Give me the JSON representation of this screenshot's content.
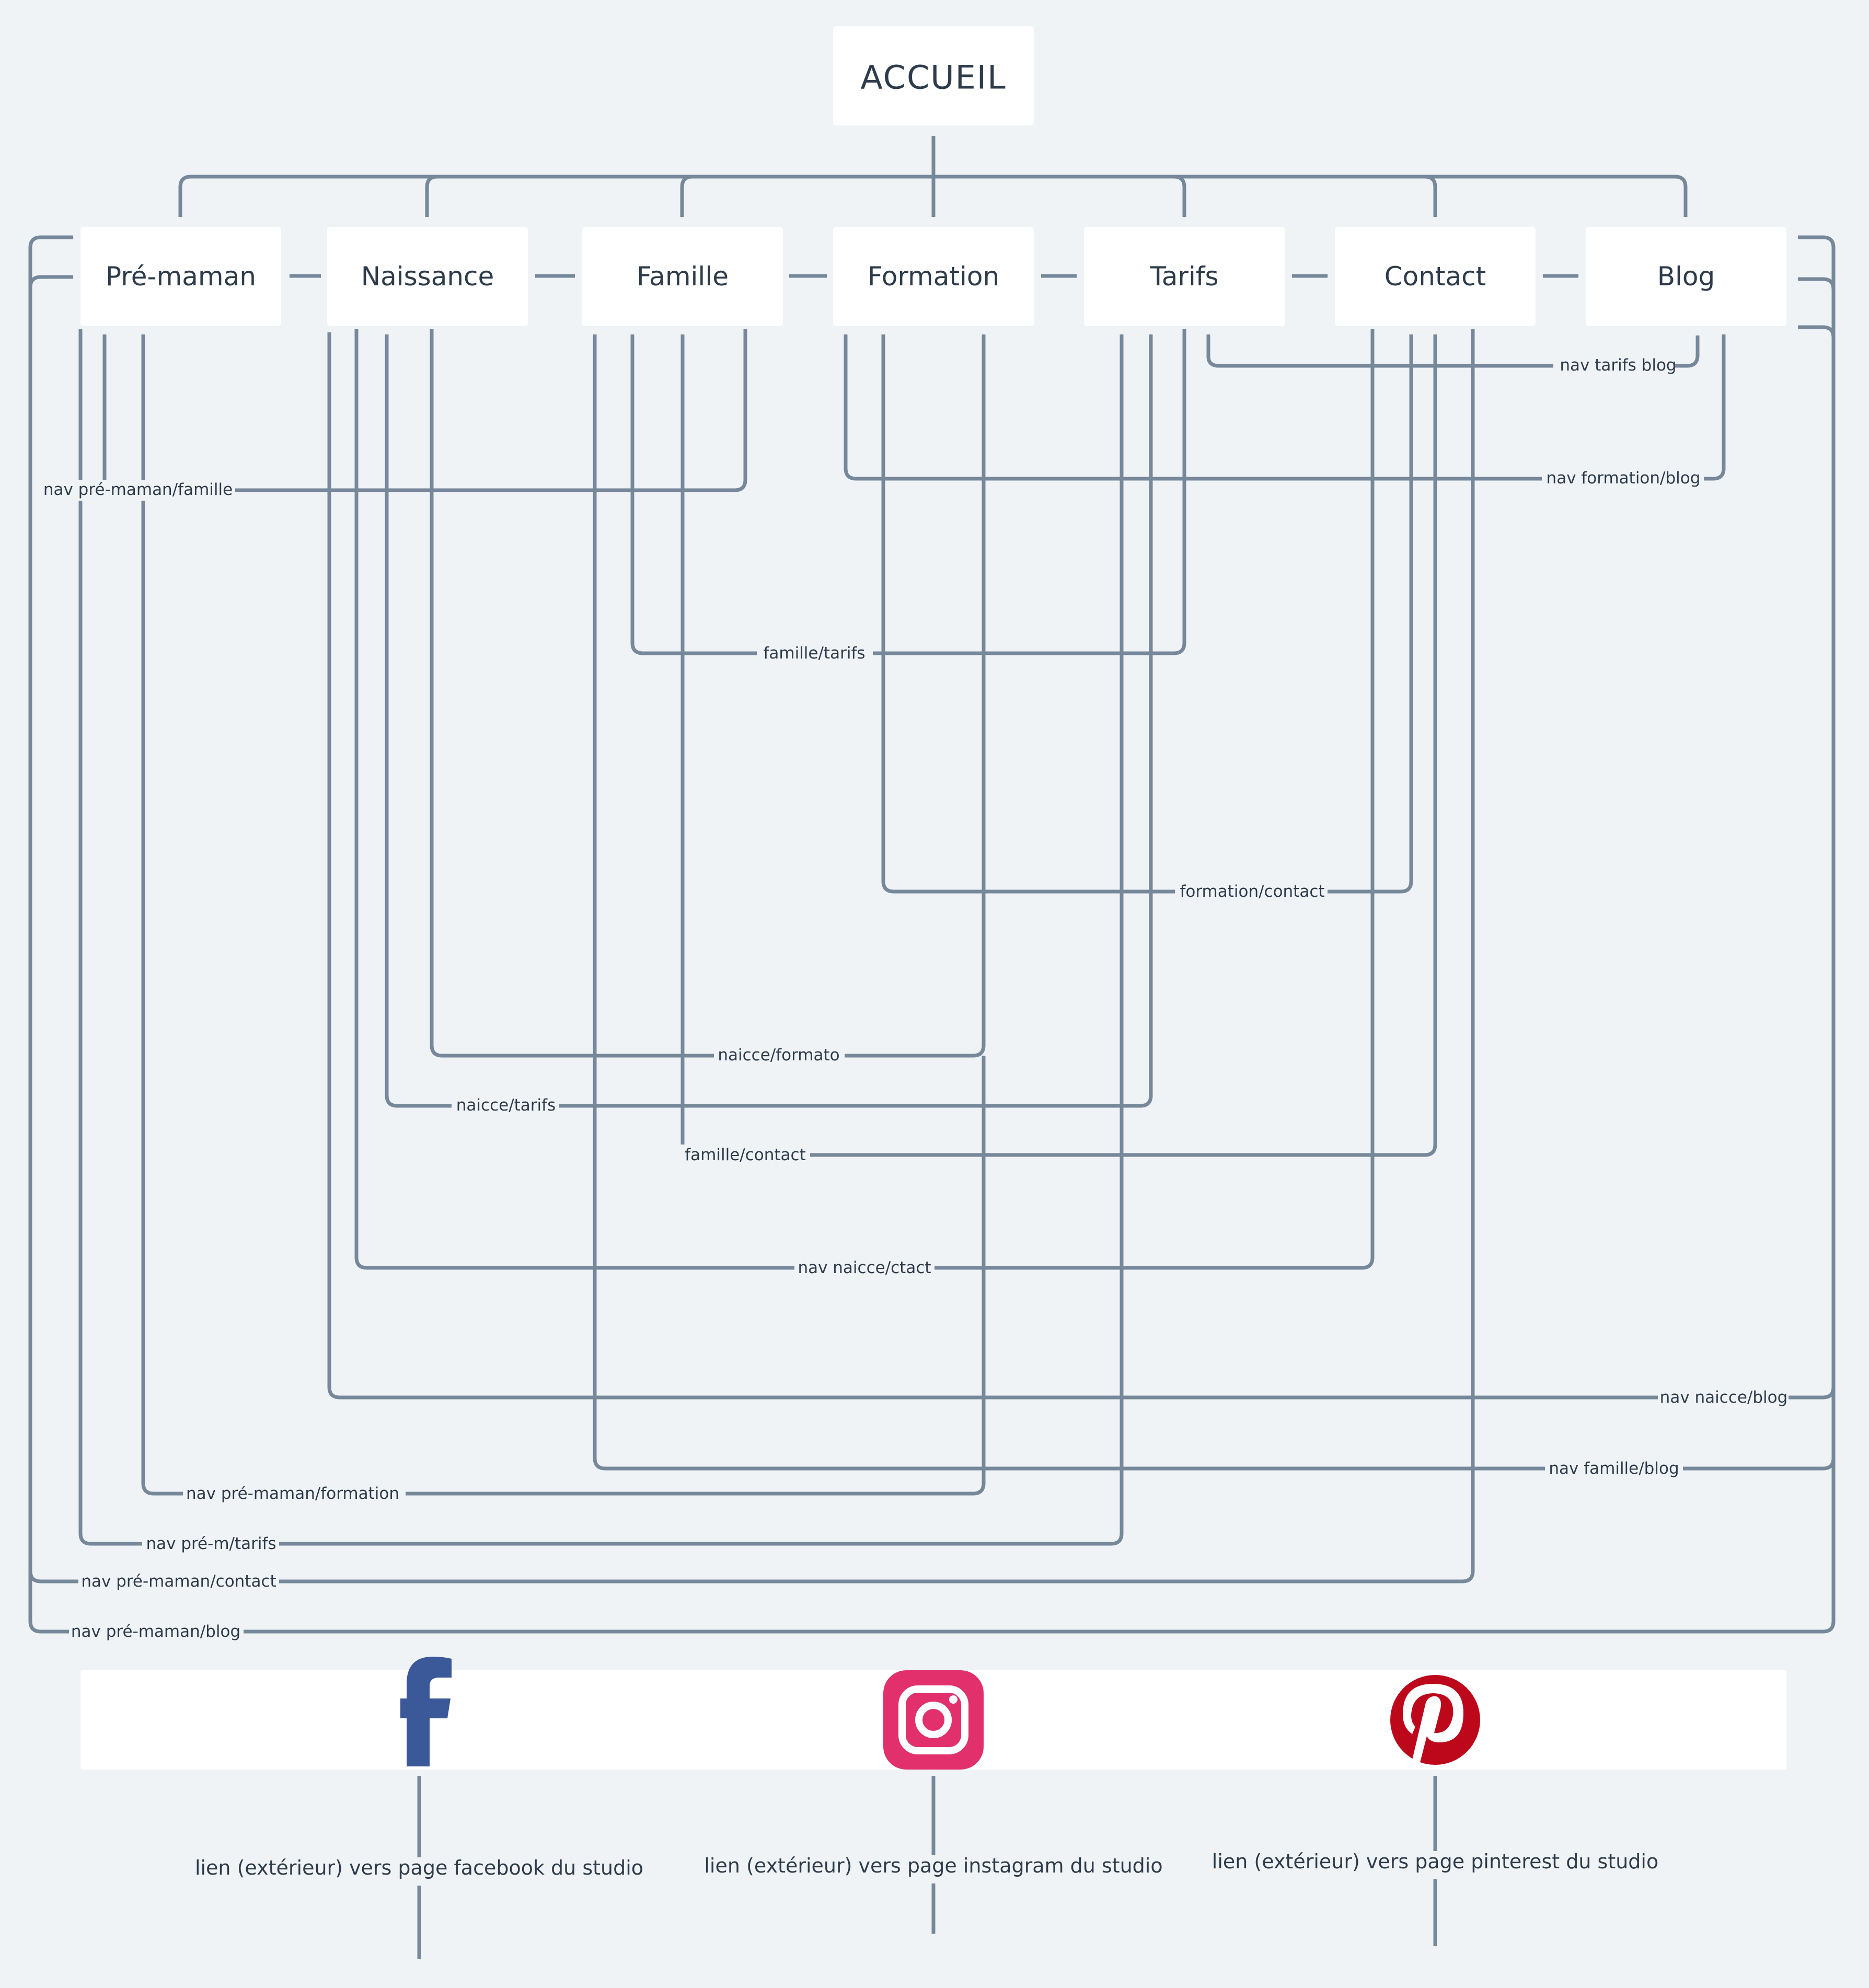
{
  "home": {
    "label": "ACCUEIL"
  },
  "pages": [
    {
      "id": "pre-maman",
      "label": "Pré-maman"
    },
    {
      "id": "naissance",
      "label": "Naissance"
    },
    {
      "id": "famille",
      "label": "Famille"
    },
    {
      "id": "formation",
      "label": "Formation"
    },
    {
      "id": "tarifs",
      "label": "Tarifs"
    },
    {
      "id": "contact",
      "label": "Contact"
    },
    {
      "id": "blog",
      "label": "Blog"
    }
  ],
  "links": [
    {
      "id": "tarifs-blog",
      "label": "nav tarifs blog"
    },
    {
      "id": "formation-blog",
      "label": "nav formation/blog"
    },
    {
      "id": "premaman-famille",
      "label": "nav pré-maman/famille"
    },
    {
      "id": "famille-tarifs",
      "label": "famille/tarifs"
    },
    {
      "id": "formation-contact",
      "label": "formation/contact"
    },
    {
      "id": "naissance-formation",
      "label": "naicce/formato"
    },
    {
      "id": "naissance-tarifs",
      "label": "naicce/tarifs"
    },
    {
      "id": "famille-contact",
      "label": "famille/contact"
    },
    {
      "id": "naissance-contact",
      "label": "nav naicce/ctact"
    },
    {
      "id": "naissance-blog",
      "label": "nav naicce/blog"
    },
    {
      "id": "famille-blog",
      "label": "nav famille/blog"
    },
    {
      "id": "premaman-formation",
      "label": "nav pré-maman/formation"
    },
    {
      "id": "premaman-tarifs",
      "label": "nav pré-m/tarifs"
    },
    {
      "id": "premaman-contact",
      "label": "nav pré-maman/contact"
    },
    {
      "id": "premaman-blog",
      "label": "nav pré-maman/blog"
    }
  ],
  "social": [
    {
      "id": "facebook",
      "icon": "facebook-icon",
      "color": "#3b5998",
      "label": "lien (extérieur) vers page facebook du studio"
    },
    {
      "id": "instagram",
      "icon": "instagram-icon",
      "color": "#e1306c",
      "label": "lien (extérieur) vers page instagram du studio"
    },
    {
      "id": "pinterest",
      "icon": "pinterest-icon",
      "color": "#bd081c",
      "label": "lien (extérieur) vers page pinterest du studio"
    }
  ],
  "colors": {
    "background": "#f0f3f6",
    "box": "#ffffff",
    "edge": "#76889a",
    "text": "#2d3b4a"
  }
}
